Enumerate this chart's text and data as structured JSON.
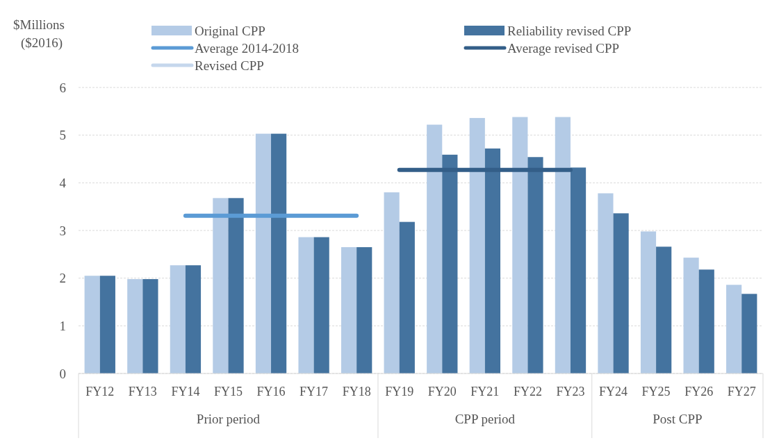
{
  "chart_data": {
    "type": "bar",
    "ylabel": "$Millions ($2016)",
    "categories": [
      "FY12",
      "FY13",
      "FY14",
      "FY15",
      "FY16",
      "FY17",
      "FY18",
      "FY19",
      "FY20",
      "FY21",
      "FY22",
      "FY23",
      "FY24",
      "FY25",
      "FY26",
      "FY27"
    ],
    "series": [
      {
        "name": "Original CPP",
        "color": "#b4cbe6",
        "values": [
          2.05,
          1.98,
          2.27,
          3.68,
          5.03,
          2.86,
          2.65,
          3.8,
          5.22,
          5.36,
          5.38,
          5.38,
          3.78,
          2.98,
          2.43,
          1.86
        ]
      },
      {
        "name": "Reliability revised CPP",
        "color": "#44739f",
        "values": [
          2.05,
          1.98,
          2.27,
          3.68,
          5.03,
          2.86,
          2.65,
          3.18,
          4.59,
          4.72,
          4.54,
          4.32,
          3.36,
          2.66,
          2.18,
          1.67
        ]
      },
      {
        "name": "Average 2014-2018",
        "type": "line",
        "color": "#5b9bd5",
        "values": [
          null,
          null,
          3.31,
          3.31,
          3.31,
          3.31,
          3.31,
          null,
          null,
          null,
          null,
          null,
          null,
          null,
          null,
          null
        ]
      },
      {
        "name": "Average revised CPP",
        "type": "line",
        "color": "#335e88",
        "values": [
          null,
          null,
          null,
          null,
          null,
          null,
          null,
          4.27,
          4.27,
          4.27,
          4.27,
          4.27,
          null,
          null,
          null,
          null
        ]
      },
      {
        "name": "Revised CPP",
        "type": "line",
        "color": "#c5d7ec",
        "values": [
          null,
          null,
          null,
          null,
          null,
          null,
          null,
          null,
          null,
          null,
          null,
          null,
          null,
          null,
          null,
          null
        ]
      }
    ],
    "ylim": [
      0,
      6
    ],
    "yticks": [
      0,
      1,
      2,
      3,
      4,
      5,
      6
    ],
    "grid": "y",
    "legend": "top",
    "annotations": [
      "Prior period",
      "CPP period",
      "Post CPP"
    ]
  }
}
